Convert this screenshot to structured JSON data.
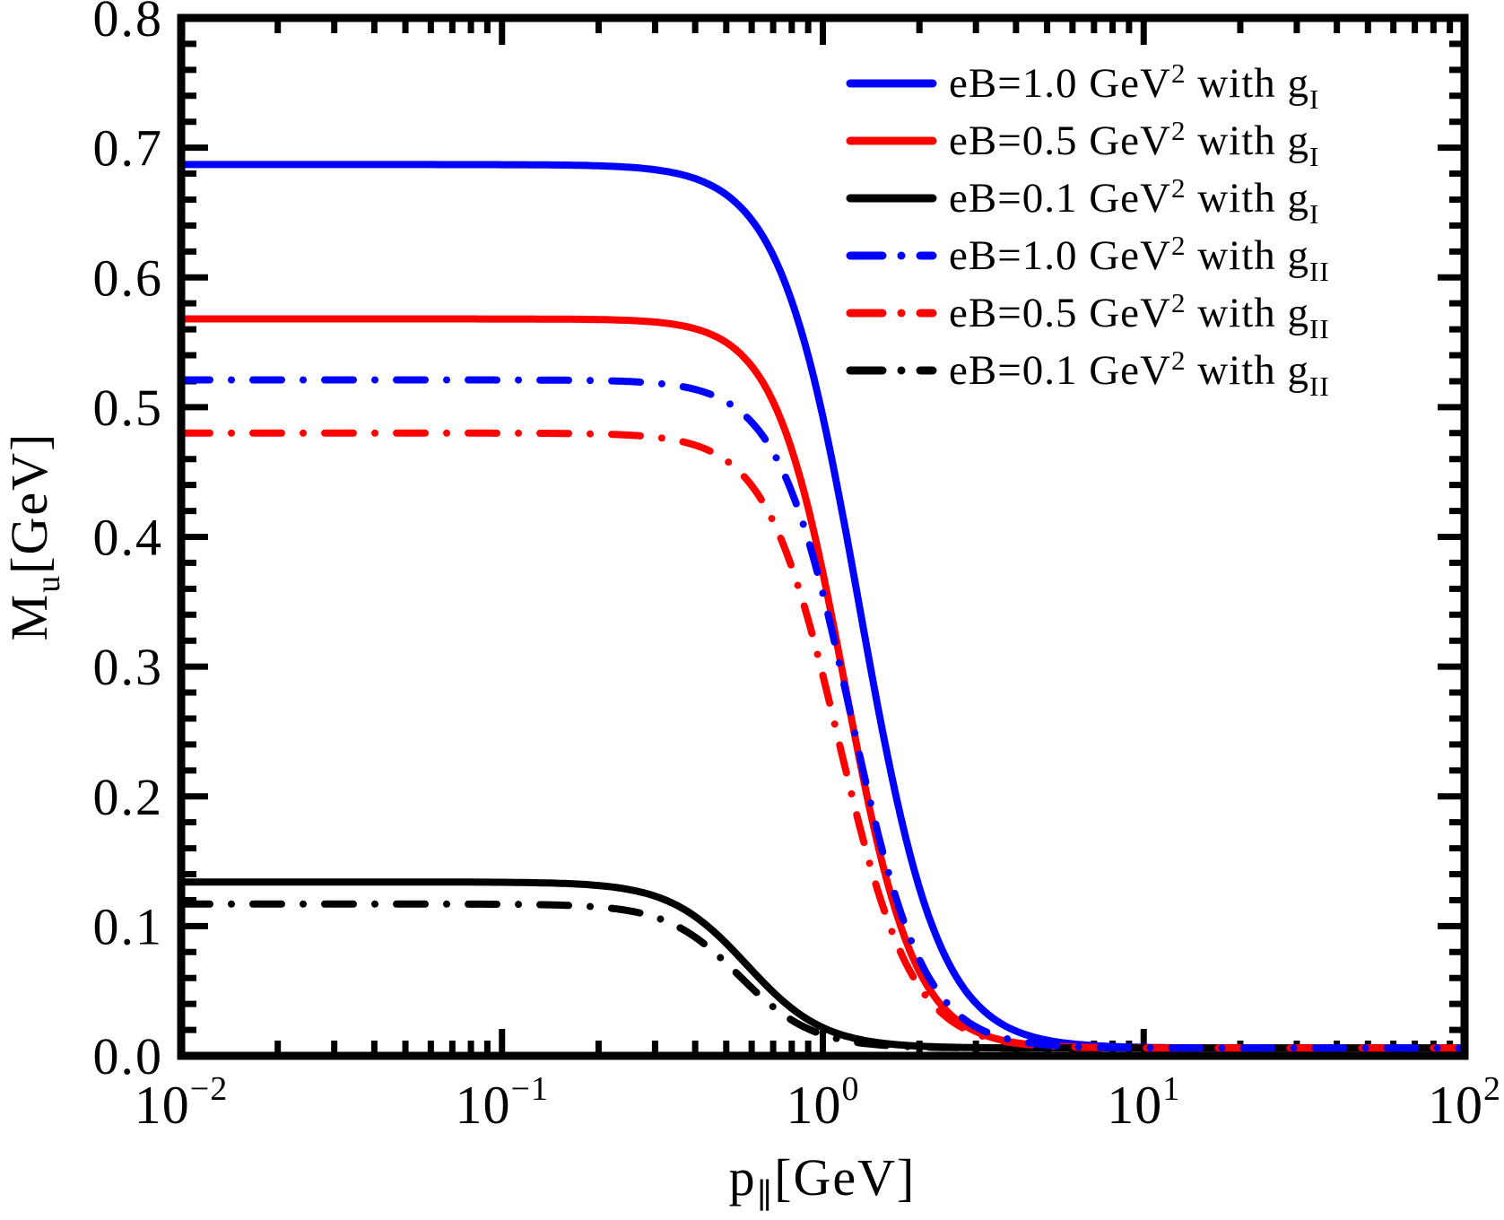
{
  "chart_data": {
    "type": "line",
    "title": "",
    "xlabel": {
      "base": "p",
      "sub": "∥",
      "suffix": "[GeV]"
    },
    "ylabel": {
      "base": "M",
      "sub": "u",
      "suffix": "[GeV]"
    },
    "x_scale": "log",
    "y_scale": "linear",
    "xlim": [
      0.01,
      100
    ],
    "ylim": [
      0.0,
      0.8
    ],
    "grid": false,
    "legend_position": "upper-right",
    "axis_color": "#000000",
    "y_ticks": [
      {
        "label": "0.0",
        "value": 0.0
      },
      {
        "label": "0.1",
        "value": 0.1
      },
      {
        "label": "0.2",
        "value": 0.2
      },
      {
        "label": "0.3",
        "value": 0.3
      },
      {
        "label": "0.4",
        "value": 0.4
      },
      {
        "label": "0.5",
        "value": 0.5
      },
      {
        "label": "0.6",
        "value": 0.6
      },
      {
        "label": "0.7",
        "value": 0.7
      },
      {
        "label": "0.8",
        "value": 0.8
      }
    ],
    "y_minor_step": 0.02,
    "x_ticks": [
      {
        "base": "10",
        "exp": "-2",
        "value": 0.01
      },
      {
        "base": "10",
        "exp": "-1",
        "value": 0.1
      },
      {
        "base": "10",
        "exp": "0",
        "value": 1
      },
      {
        "base": "10",
        "exp": "1",
        "value": 10
      },
      {
        "base": "10",
        "exp": "2",
        "value": 100
      }
    ],
    "x": [
      0.01,
      0.03,
      0.1,
      0.2,
      0.3,
      0.5,
      0.7,
      1.0,
      1.5,
      2.0,
      3.0,
      5.0,
      10,
      30,
      100
    ],
    "series": [
      {
        "label": "eB=1.0 GeV² with g_I",
        "legend": {
          "prefix": "eB=1.0  GeV",
          "sup": "2",
          "mid": " with g",
          "sub": "I"
        },
        "color": "#0000FF",
        "line_style": "solid",
        "model": {
          "M0": 0.687,
          "Minf": 0.006,
          "p0": 1.3,
          "a": 3.5
        },
        "values": [
          0.687,
          0.687,
          0.687,
          0.686,
          0.683,
          0.664,
          0.617,
          0.493,
          0.263,
          0.129,
          0.041,
          0.012,
          0.007,
          0.006,
          0.006
        ]
      },
      {
        "label": "eB=0.5 GeV² with g_I",
        "legend": {
          "prefix": "eB=0.5  GeV",
          "sup": "2",
          "mid": " with g",
          "sub": "I"
        },
        "color": "#FF0000",
        "line_style": "solid",
        "model": {
          "M0": 0.568,
          "Minf": 0.006,
          "p0": 1.17,
          "a": 4.0
        },
        "values": [
          0.568,
          0.568,
          0.568,
          0.568,
          0.566,
          0.55,
          0.504,
          0.372,
          0.158,
          0.065,
          0.019,
          0.008,
          0.006,
          0.006,
          0.006
        ]
      },
      {
        "label": "eB=0.1 GeV² with g_I",
        "legend": {
          "prefix": "eB=0.1  GeV",
          "sup": "2",
          "mid": " with g",
          "sub": "I"
        },
        "color": "#000000",
        "line_style": "solid",
        "model": {
          "M0": 0.134,
          "Minf": 0.006,
          "p0": 0.58,
          "a": 3.6
        },
        "values": [
          0.134,
          0.134,
          0.134,
          0.131,
          0.123,
          0.087,
          0.049,
          0.022,
          0.01,
          0.007,
          0.007,
          0.006,
          0.006,
          0.006,
          0.006
        ]
      },
      {
        "label": "eB=1.0 GeV² with g_II",
        "legend": {
          "prefix": "eB=1.0  GeV",
          "sup": "2",
          "mid": " with g",
          "sub": "II"
        },
        "color": "#0000FF",
        "line_style": "dashdot",
        "model": {
          "M0": 0.521,
          "Minf": 0.006,
          "p0": 1.22,
          "a": 3.8
        },
        "values": [
          0.521,
          0.521,
          0.521,
          0.521,
          0.519,
          0.504,
          0.465,
          0.356,
          0.167,
          0.074,
          0.022,
          0.008,
          0.006,
          0.006,
          0.006
        ]
      },
      {
        "label": "eB=0.5 GeV² with g_II",
        "legend": {
          "prefix": "eB=0.5  GeV",
          "sup": "2",
          "mid": " with g",
          "sub": "II"
        },
        "color": "#FF0000",
        "line_style": "dashdot",
        "model": {
          "M0": 0.48,
          "Minf": 0.006,
          "p0": 1.12,
          "a": 3.8
        },
        "values": [
          0.48,
          0.48,
          0.48,
          0.479,
          0.477,
          0.459,
          0.412,
          0.293,
          0.124,
          0.053,
          0.017,
          0.008,
          0.006,
          0.006,
          0.006
        ]
      },
      {
        "label": "eB=0.1 GeV² with g_II",
        "legend": {
          "prefix": "eB=0.1  GeV",
          "sup": "2",
          "mid": " with g",
          "sub": "II"
        },
        "color": "#000000",
        "line_style": "dashdot",
        "model": {
          "M0": 0.117,
          "Minf": 0.006,
          "p0": 0.55,
          "a": 3.8
        },
        "values": [
          0.117,
          0.117,
          0.117,
          0.115,
          0.107,
          0.071,
          0.038,
          0.016,
          0.008,
          0.007,
          0.006,
          0.006,
          0.006,
          0.006,
          0.006
        ]
      }
    ],
    "draw_order": [
      0,
      1,
      2,
      5,
      4,
      3
    ]
  }
}
